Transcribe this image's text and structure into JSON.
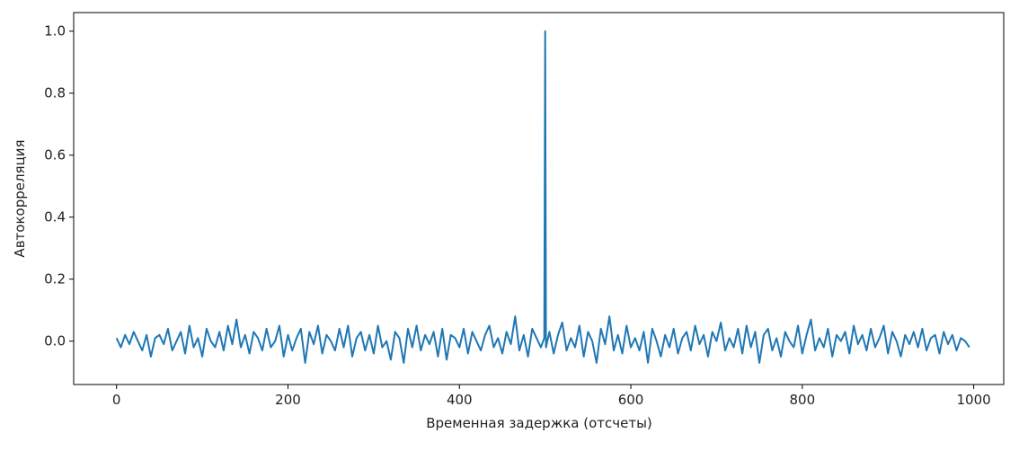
{
  "chart_data": {
    "type": "line",
    "title": "",
    "xlabel": "Временная задержка (отсчеты)",
    "ylabel": "Автокорреляция",
    "xlim": [
      -50,
      1035
    ],
    "ylim": [
      -0.14,
      1.06
    ],
    "xticks": [
      0,
      200,
      400,
      600,
      800,
      1000
    ],
    "xtick_labels": [
      "0",
      "200",
      "400",
      "600",
      "800",
      "1000"
    ],
    "yticks": [
      0.0,
      0.2,
      0.4,
      0.6,
      0.8,
      1.0
    ],
    "ytick_labels": [
      "0.0",
      "0.2",
      "0.4",
      "0.6",
      "0.8",
      "1.0"
    ],
    "grid": false,
    "line_color": "#1f77b4",
    "series": [
      {
        "x": [
          0,
          5,
          10,
          15,
          20,
          25,
          30,
          35,
          40,
          45,
          50,
          55,
          60,
          65,
          70,
          75,
          80,
          85,
          90,
          95,
          100,
          105,
          110,
          115,
          120,
          125,
          130,
          135,
          140,
          145,
          150,
          155,
          160,
          165,
          170,
          175,
          180,
          185,
          190,
          195,
          200,
          205,
          210,
          215,
          220,
          225,
          230,
          235,
          240,
          245,
          250,
          255,
          260,
          265,
          270,
          275,
          280,
          285,
          290,
          295,
          300,
          305,
          310,
          315,
          320,
          325,
          330,
          335,
          340,
          345,
          350,
          355,
          360,
          365,
          370,
          375,
          380,
          385,
          390,
          395,
          400,
          405,
          410,
          415,
          420,
          425,
          430,
          435,
          440,
          445,
          450,
          455,
          460,
          465,
          470,
          475,
          480,
          485,
          490,
          495,
          499,
          500,
          501,
          505,
          510,
          515,
          520,
          525,
          530,
          535,
          540,
          545,
          550,
          555,
          560,
          565,
          570,
          575,
          580,
          585,
          590,
          595,
          600,
          605,
          610,
          615,
          620,
          625,
          630,
          635,
          640,
          645,
          650,
          655,
          660,
          665,
          670,
          675,
          680,
          685,
          690,
          695,
          700,
          705,
          710,
          715,
          720,
          725,
          730,
          735,
          740,
          745,
          750,
          755,
          760,
          765,
          770,
          775,
          780,
          785,
          790,
          795,
          800,
          805,
          810,
          815,
          820,
          825,
          830,
          835,
          840,
          845,
          850,
          855,
          860,
          865,
          870,
          875,
          880,
          885,
          890,
          895,
          900,
          905,
          910,
          915,
          920,
          925,
          930,
          935,
          940,
          945,
          950,
          955,
          960,
          965,
          970,
          975,
          980,
          985,
          990,
          995
        ],
        "y": [
          0.01,
          -0.02,
          0.02,
          -0.01,
          0.03,
          0.0,
          -0.03,
          0.02,
          -0.05,
          0.01,
          0.02,
          -0.01,
          0.04,
          -0.03,
          0.0,
          0.03,
          -0.04,
          0.05,
          -0.02,
          0.01,
          -0.05,
          0.04,
          0.0,
          -0.02,
          0.03,
          -0.03,
          0.05,
          -0.01,
          0.07,
          -0.02,
          0.02,
          -0.04,
          0.03,
          0.01,
          -0.03,
          0.04,
          -0.02,
          0.0,
          0.05,
          -0.05,
          0.02,
          -0.03,
          0.01,
          0.04,
          -0.07,
          0.03,
          -0.01,
          0.05,
          -0.04,
          0.02,
          0.0,
          -0.03,
          0.04,
          -0.02,
          0.05,
          -0.05,
          0.01,
          0.03,
          -0.03,
          0.02,
          -0.04,
          0.05,
          -0.02,
          0.0,
          -0.06,
          0.03,
          0.01,
          -0.07,
          0.04,
          -0.02,
          0.05,
          -0.03,
          0.02,
          -0.01,
          0.03,
          -0.05,
          0.04,
          -0.06,
          0.02,
          0.01,
          -0.02,
          0.04,
          -0.04,
          0.03,
          0.0,
          -0.03,
          0.02,
          0.05,
          -0.02,
          0.01,
          -0.04,
          0.03,
          -0.01,
          0.08,
          -0.03,
          0.02,
          -0.05,
          0.04,
          0.01,
          -0.02,
          0.01,
          1.0,
          -0.02,
          0.03,
          -0.04,
          0.02,
          0.06,
          -0.03,
          0.01,
          -0.02,
          0.05,
          -0.05,
          0.03,
          0.0,
          -0.07,
          0.04,
          -0.01,
          0.08,
          -0.03,
          0.02,
          -0.04,
          0.05,
          -0.02,
          0.01,
          -0.03,
          0.03,
          -0.07,
          0.04,
          0.0,
          -0.05,
          0.02,
          -0.02,
          0.04,
          -0.04,
          0.01,
          0.03,
          -0.03,
          0.05,
          -0.01,
          0.02,
          -0.05,
          0.03,
          0.0,
          0.06,
          -0.03,
          0.01,
          -0.02,
          0.04,
          -0.04,
          0.05,
          -0.02,
          0.03,
          -0.07,
          0.02,
          0.04,
          -0.03,
          0.01,
          -0.05,
          0.03,
          0.0,
          -0.02,
          0.05,
          -0.04,
          0.02,
          0.07,
          -0.03,
          0.01,
          -0.02,
          0.04,
          -0.05,
          0.02,
          0.0,
          0.03,
          -0.04,
          0.05,
          -0.01,
          0.02,
          -0.03,
          0.04,
          -0.02,
          0.01,
          0.05,
          -0.04,
          0.03,
          0.0,
          -0.05,
          0.02,
          -0.01,
          0.03,
          -0.02,
          0.04,
          -0.03,
          0.01,
          0.02,
          -0.04,
          0.03,
          -0.01,
          0.02,
          -0.03,
          0.01,
          0.0,
          -0.02
        ]
      }
    ]
  }
}
